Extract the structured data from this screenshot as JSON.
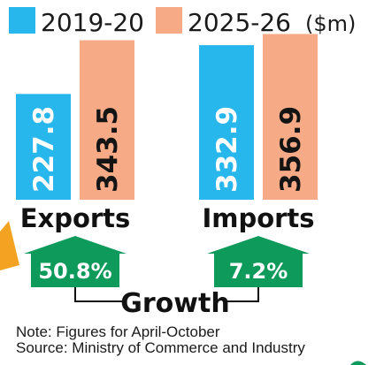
{
  "chart_data": {
    "type": "bar",
    "unit_label": "($m)",
    "categories": [
      "Exports",
      "Imports"
    ],
    "series": [
      {
        "name": "2019-20",
        "color": "#27b7ec",
        "values": [
          227.8,
          332.9
        ]
      },
      {
        "name": "2025-26",
        "color": "#f6ab86",
        "values": [
          343.5,
          356.9
        ]
      }
    ],
    "ylim": [
      0,
      357.8
    ],
    "grid": false,
    "legend": "top",
    "growth": {
      "title": "Growth",
      "color": "#0e9a5a",
      "values": [
        "50.8%",
        "7.2%"
      ]
    },
    "notes": [
      "Note: Figures for April-October",
      "Source: Ministry of Commerce and Industry"
    ]
  }
}
